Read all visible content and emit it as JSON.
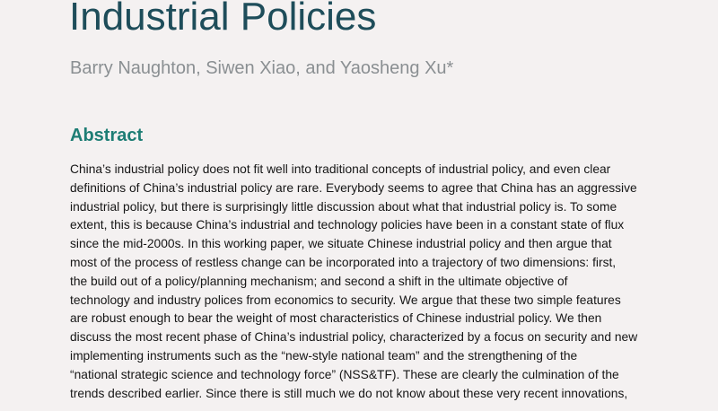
{
  "title": "Industrial Policies",
  "authors": "Barry Naughton, Siwen Xiao, and Yaosheng Xu*",
  "abstract_heading": "Abstract",
  "abstract_lines": [
    "China’s industrial policy does not fit well into traditional concepts of industrial policy, and even clear",
    "definitions of China’s industrial policy are rare. Everybody seems to agree that China has an aggressive",
    "industrial policy, but there is surprisingly little discussion about what that industrial policy is. To some",
    "extent, this is because China’s industrial and technology policies have been in a constant state of flux",
    "since the mid-2000s. In this working paper, we situate Chinese industrial policy and then argue that",
    "most of the process of restless change can be incorporated into a trajectory of two dimensions: first,",
    "the build out of a policy/planning mechanism; and second a shift in the ultimate objective of",
    "technology and industry polices from economics to security. We argue that these two simple features",
    "are robust enough to bear the weight of most characteristics of Chinese industrial policy. We then",
    "discuss the most recent phase of China’s industrial policy, characterized by a focus on security and new",
    "implementing instruments such as the “new-style national team” and the strengthening of the",
    "“national strategic science and technology force” (NSS&TF). These are clearly the culmination of the",
    "trends described earlier. Since there is still much we do not know about these very recent innovations,"
  ],
  "colors": {
    "background": "#f4f1f1",
    "title": "#1e4d5a",
    "authors": "#8a8f92",
    "heading": "#1d7d74",
    "body_text": "#161616"
  }
}
